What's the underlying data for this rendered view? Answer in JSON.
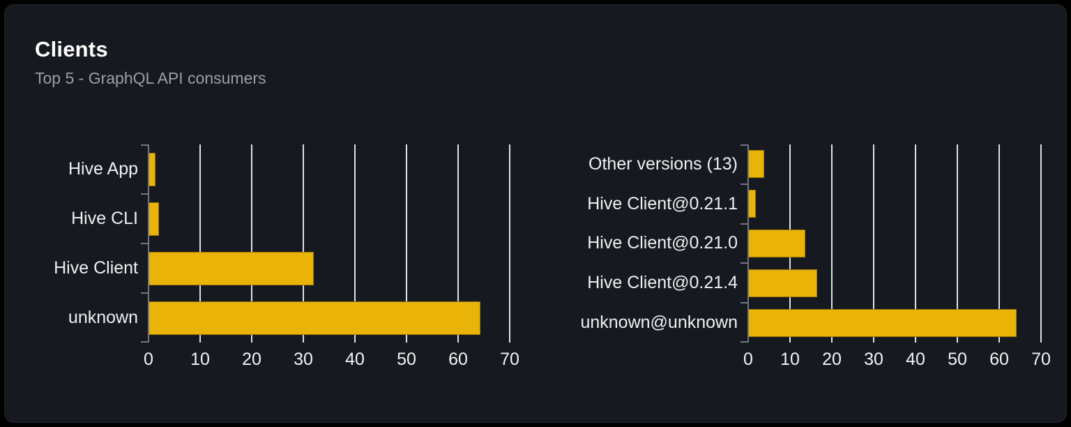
{
  "card": {
    "title": "Clients",
    "subtitle": "Top 5 - GraphQL API consumers"
  },
  "colors": {
    "page_bg": "#000000",
    "card_bg": "#16191f",
    "bar": "#eab308",
    "gridline": "#dde2ec",
    "axis": "#72767f",
    "title_text": "#ffffff",
    "subtitle_text": "#9aa0a8",
    "label_text": "#eef0f2"
  },
  "chart_data": [
    {
      "type": "bar",
      "orientation": "horizontal",
      "title": "",
      "categories": [
        "Hive App",
        "Hive CLI",
        "Hive Client",
        "unknown"
      ],
      "values": [
        1.3,
        2,
        32,
        64.3
      ],
      "xlim": [
        0,
        70
      ],
      "xticks": [
        0,
        10,
        20,
        30,
        40,
        50,
        60,
        70
      ],
      "grid": true,
      "legend": false,
      "bar_color": "#eab308"
    },
    {
      "type": "bar",
      "orientation": "horizontal",
      "title": "",
      "categories": [
        "Other versions (13)",
        "Hive Client@0.21.1",
        "Hive Client@0.21.0",
        "Hive Client@0.21.4",
        "unknown@unknown"
      ],
      "values": [
        3.8,
        1.8,
        13.7,
        16.5,
        64.2
      ],
      "xlim": [
        0,
        70
      ],
      "xticks": [
        0,
        10,
        20,
        30,
        40,
        50,
        60,
        70
      ],
      "grid": true,
      "legend": false,
      "bar_color": "#eab308"
    }
  ]
}
